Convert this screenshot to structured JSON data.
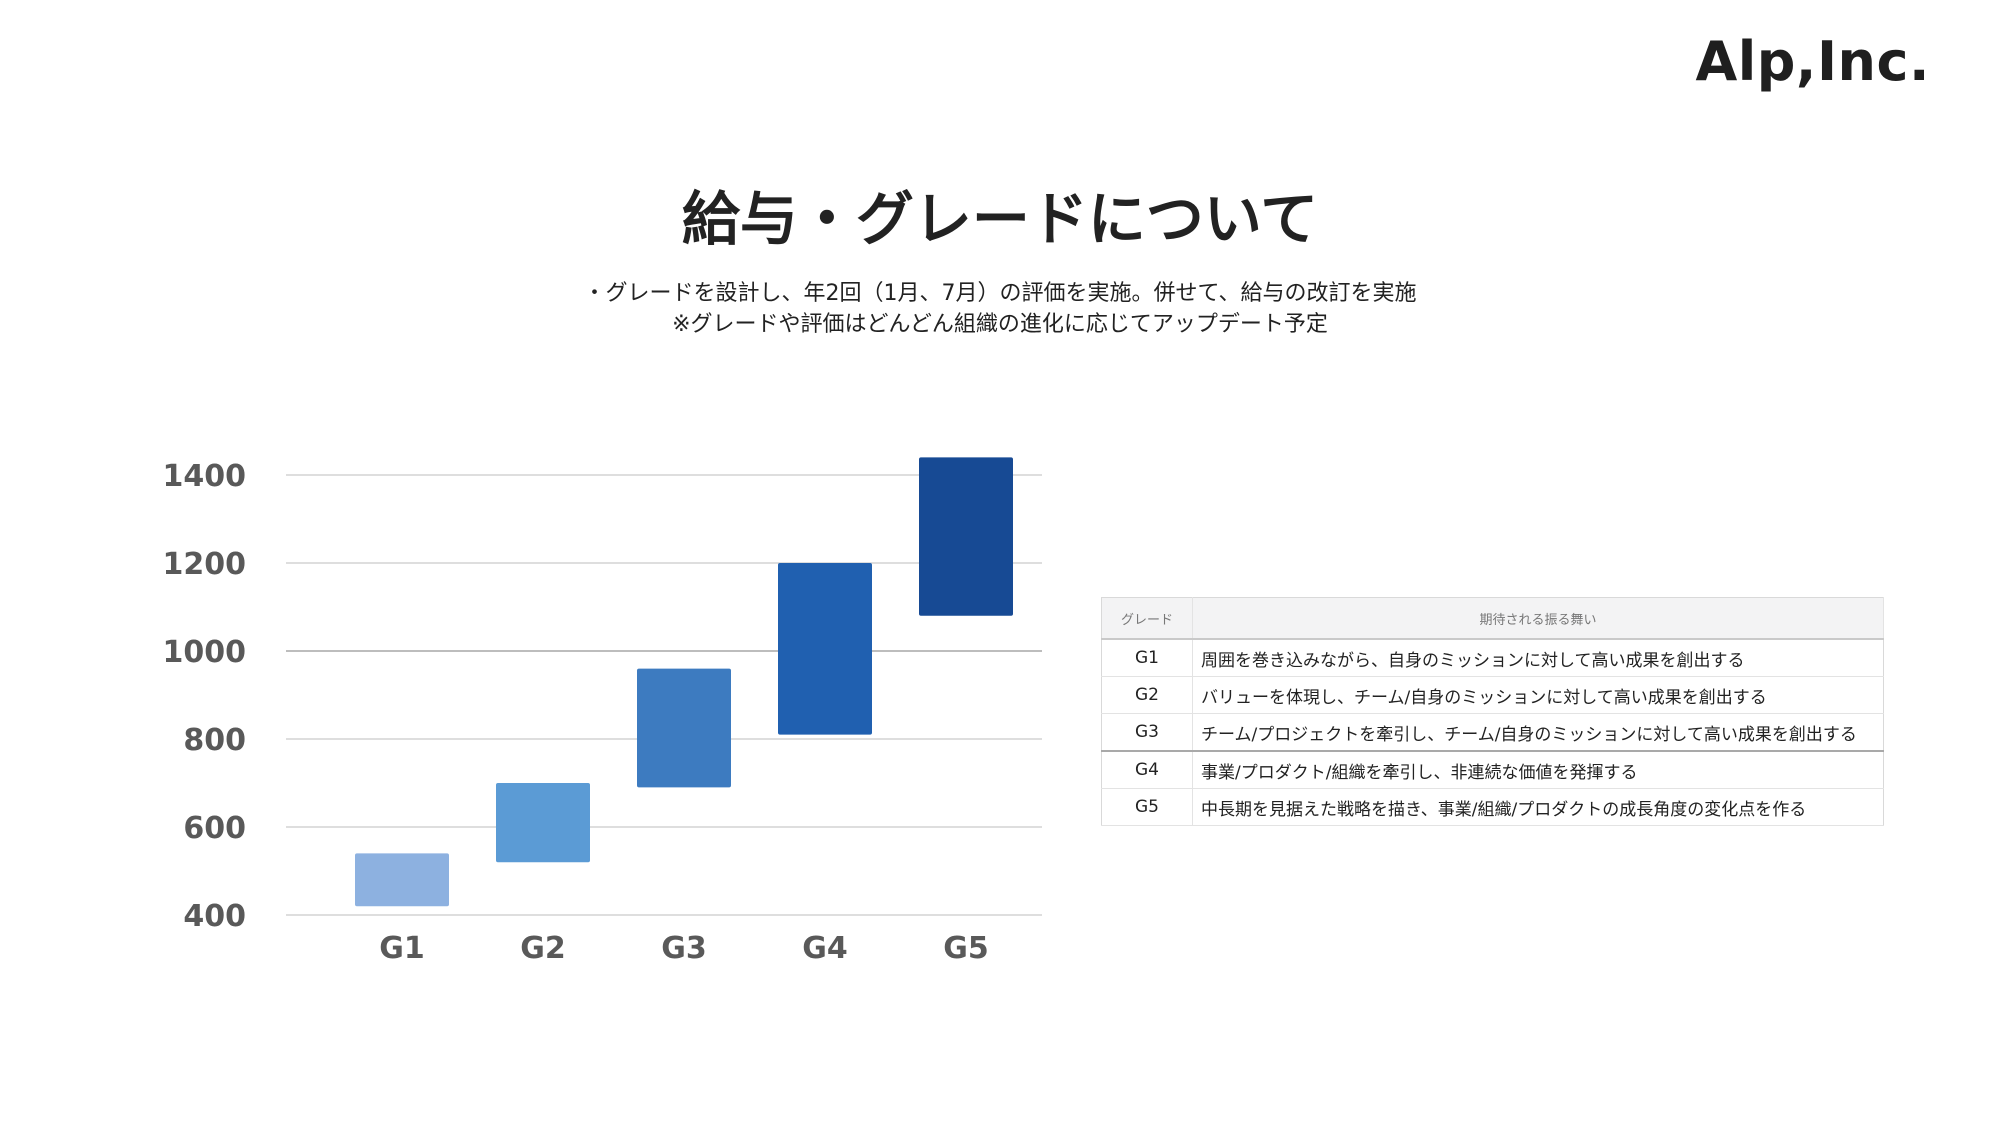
{
  "logo": {
    "text": "Alp,Inc."
  },
  "title": "給与・グレードについて",
  "subtitle": {
    "line1": "・グレードを設計し、年2回（1月、7月）の評価を実施。併せて、給与の改訂を実施",
    "line2": "※グレードや評価はどんどん組織の進化に応じてアップデート予定"
  },
  "chart_data": {
    "type": "bar",
    "subtype": "floating-range",
    "categories": [
      "G1",
      "G2",
      "G3",
      "G4",
      "G5"
    ],
    "ranges": [
      [
        420,
        540
      ],
      [
        520,
        700
      ],
      [
        690,
        960
      ],
      [
        810,
        1200
      ],
      [
        1080,
        1440
      ]
    ],
    "colors": [
      "#8db1e0",
      "#5b9bd5",
      "#3d7bc0",
      "#2060b0",
      "#174a94"
    ],
    "y_ticks": [
      400,
      600,
      800,
      1000,
      1200,
      1400
    ],
    "ylim": [
      400,
      1440
    ],
    "grid": true
  },
  "table": {
    "headers": [
      "グレード",
      "期待される振る舞い"
    ],
    "rows": [
      [
        "G1",
        "周囲を巻き込みながら、自身のミッションに対して高い成果を創出する"
      ],
      [
        "G2",
        "バリューを体現し、チーム/自身のミッションに対して高い成果を創出する"
      ],
      [
        "G3",
        "チーム/プロジェクトを牽引し、チーム/自身のミッションに対して高い成果を創出する"
      ],
      [
        "G4",
        " 事業/プロダクト/組織を牽引し、非連続な価値を発揮する"
      ],
      [
        "G5",
        "中長期を見据えた戦略を描き、事業/組織/プロダクトの成長角度の変化点を作る"
      ]
    ]
  }
}
